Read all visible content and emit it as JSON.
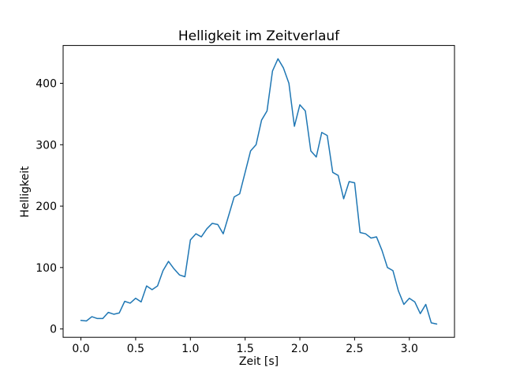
{
  "figure": {
    "title": "Helligkeit im Zeitverlauf",
    "xlabel": "Zeit [s]",
    "ylabel": "Helligkeit"
  },
  "chart_data": {
    "type": "line",
    "title": "Helligkeit im Zeitverlauf",
    "xlabel": "Zeit [s]",
    "ylabel": "Helligkeit",
    "line_color": "#1f77b4",
    "line_width": 1.5,
    "grid": false,
    "legend_position": "none",
    "xlim": [
      -0.1625,
      3.4125
    ],
    "ylim": [
      -13.6,
      461.6
    ],
    "xticks": [
      0.0,
      0.5,
      1.0,
      1.5,
      2.0,
      2.5,
      3.0
    ],
    "xtick_labels": [
      "0.0",
      "0.5",
      "1.0",
      "1.5",
      "2.0",
      "2.5",
      "3.0"
    ],
    "yticks": [
      0,
      100,
      200,
      300,
      400
    ],
    "ytick_labels": [
      "0",
      "100",
      "200",
      "300",
      "400"
    ],
    "x": [
      0.0,
      0.05,
      0.1,
      0.15,
      0.2,
      0.25,
      0.3,
      0.35,
      0.4,
      0.45,
      0.5,
      0.55,
      0.6,
      0.65,
      0.7,
      0.75,
      0.8,
      0.85,
      0.9,
      0.95,
      1.0,
      1.05,
      1.1,
      1.15,
      1.2,
      1.25,
      1.3,
      1.35,
      1.4,
      1.45,
      1.5,
      1.55,
      1.6,
      1.65,
      1.7,
      1.75,
      1.8,
      1.85,
      1.9,
      1.95,
      2.0,
      2.05,
      2.1,
      2.15,
      2.2,
      2.25,
      2.3,
      2.35,
      2.4,
      2.45,
      2.5,
      2.55,
      2.6,
      2.65,
      2.7,
      2.75,
      2.8,
      2.85,
      2.9,
      2.95,
      3.0,
      3.05,
      3.1,
      3.15,
      3.2,
      3.25
    ],
    "y": [
      14,
      13,
      20,
      17,
      17,
      27,
      24,
      26,
      45,
      42,
      50,
      44,
      70,
      64,
      70,
      95,
      110,
      98,
      88,
      85,
      145,
      155,
      150,
      163,
      172,
      170,
      155,
      185,
      215,
      220,
      255,
      290,
      300,
      340,
      355,
      420,
      440,
      425,
      400,
      330,
      365,
      355,
      290,
      280,
      320,
      315,
      255,
      250,
      212,
      240,
      238,
      157,
      155,
      148,
      150,
      128,
      100,
      95,
      62,
      40,
      50,
      44,
      25,
      40,
      10,
      8
    ]
  }
}
